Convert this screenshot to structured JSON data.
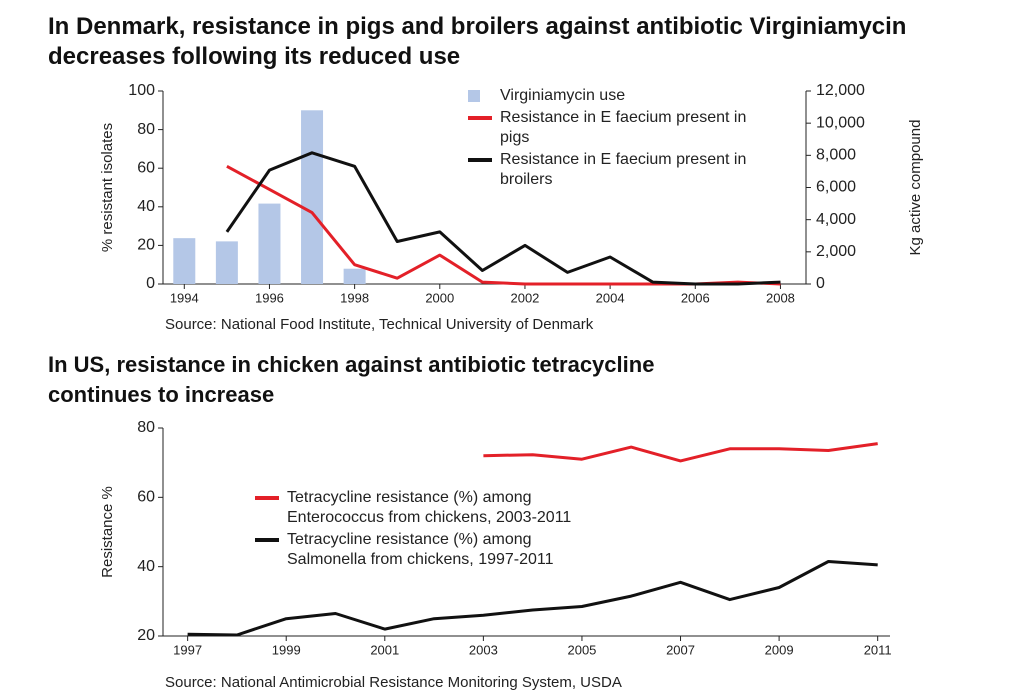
{
  "chart_data": [
    {
      "type": "combo",
      "title": "In Denmark, resistance in pigs and broilers against antibiotic Virginiamycin decreases following its reduced use",
      "ylabel": "% resistant isolates",
      "y2label": "Kg active compound",
      "source": "Source: National Food Institute, Technical University of Denmark",
      "x": [
        1994,
        1995,
        1996,
        1997,
        1998,
        1999,
        2000,
        2001,
        2002,
        2003,
        2004,
        2005,
        2006,
        2007,
        2008
      ],
      "xlim": [
        1993.5,
        2008.6
      ],
      "xticks": [
        1994,
        1996,
        1998,
        2000,
        2002,
        2004,
        2006,
        2008
      ],
      "ylim": [
        0,
        100
      ],
      "yticks": [
        0,
        20,
        40,
        60,
        80,
        100
      ],
      "y2lim": [
        0,
        12000
      ],
      "y2ticks": [
        0,
        {
          "value": 2000,
          "label": "2,000"
        },
        {
          "value": 4000,
          "label": "4,000"
        },
        {
          "value": 6000,
          "label": "6,000"
        },
        {
          "value": 8000,
          "label": "8,000"
        },
        {
          "value": 10000,
          "label": "10,000"
        },
        {
          "value": 12000,
          "label": "12,000"
        }
      ],
      "series": [
        {
          "name": "Virginiamycin use",
          "type": "bar",
          "axis": "y2",
          "color": "#b4c7e7",
          "values": [
            2850,
            2650,
            5000,
            10800,
            950,
            null,
            null,
            null,
            null,
            null,
            null,
            null,
            null,
            null,
            null
          ]
        },
        {
          "name": "Resistance in E faecium present in pigs",
          "type": "line",
          "color": "#e32028",
          "values": [
            null,
            61,
            49,
            37,
            10,
            3,
            15,
            1,
            0,
            0,
            0,
            0,
            0,
            1,
            0
          ]
        },
        {
          "name": "Resistance in E faecium present in broilers",
          "type": "line",
          "color": "#111111",
          "values": [
            null,
            27,
            59,
            68,
            61,
            22,
            27,
            7,
            20,
            6,
            14,
            1,
            0,
            0,
            1
          ]
        }
      ]
    },
    {
      "type": "line",
      "title": "In US, resistance in chicken against antibiotic tetracycline continues to increase",
      "ylabel": "Resistance %",
      "source": "Source: National Antimicrobial Resistance Monitoring System, USDA",
      "x": [
        1997,
        1998,
        1999,
        2000,
        2001,
        2002,
        2003,
        2004,
        2005,
        2006,
        2007,
        2008,
        2009,
        2010,
        2011
      ],
      "xlim": [
        1996.5,
        2011.25
      ],
      "xticks": [
        1997,
        1999,
        2001,
        2003,
        2005,
        2007,
        2009,
        2011
      ],
      "ylim": [
        20,
        80
      ],
      "yticks": [
        20,
        40,
        60,
        80
      ],
      "series": [
        {
          "name": "Tetracycline resistance (%) among Enterococcus from chickens, 2003-2011",
          "type": "line",
          "color": "#e32028",
          "values": [
            null,
            null,
            null,
            null,
            null,
            null,
            72,
            72.3,
            71,
            74.5,
            70.5,
            74,
            74,
            73.5,
            75.5
          ]
        },
        {
          "name": "Tetracycline resistance (%) among Salmonella from chickens, 1997-2011",
          "type": "line",
          "color": "#111111",
          "values": [
            20.5,
            20.3,
            25,
            26.5,
            22,
            25,
            26,
            27.5,
            28.5,
            31.5,
            35.5,
            30.5,
            34,
            41.5,
            40.5
          ]
        }
      ]
    }
  ]
}
